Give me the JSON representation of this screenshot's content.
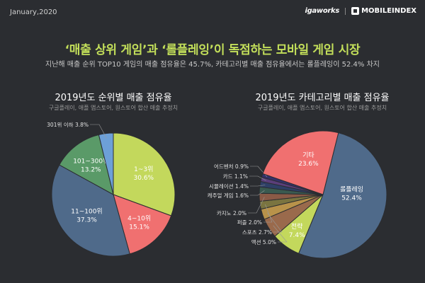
{
  "header": {
    "date": "January,2020",
    "brand_left": "igaworks",
    "brand_right": "MOBILEINDEX"
  },
  "title": "‘매출 상위 게임’과 ‘롤플레잉’이 독점하는 모바일 게임 시장",
  "subtitle": "지난해 매출 순위 TOP10 게임의 매출 점유율은 45.7%, 카테고리별 매출 점유율에서는 롤플레잉이 52.4% 차지",
  "colors": {
    "background": "#2b2d31",
    "title": "#c3df5a"
  },
  "chart_data": [
    {
      "type": "pie",
      "title": "2019년도 순위별 매출 점유율",
      "subtitle": "구글플레이, 애플 앱스토어, 원스토어 합산 매출 추정치",
      "slices": [
        {
          "label": "1~3위",
          "value": 30.6,
          "value_text": "30.6%",
          "color": "#c3d85c"
        },
        {
          "label": "4~10위",
          "value": 15.1,
          "value_text": "15.1%",
          "color": "#f07070"
        },
        {
          "label": "11~100위",
          "value": 37.3,
          "value_text": "37.3%",
          "color": "#4f6a8a"
        },
        {
          "label": "101~300위",
          "value": 13.2,
          "value_text": "13.2%",
          "color": "#5a9a68"
        },
        {
          "label": "301위 이하",
          "value": 3.8,
          "value_text": "3.8%",
          "color": "#6da0d8"
        }
      ]
    },
    {
      "type": "pie",
      "title": "2019년도 카테고리별 매출 점유율",
      "subtitle": "구글플레이, 애플 앱스토어, 원스토어 합산 매출 추정치",
      "slices": [
        {
          "label": "롤플레잉",
          "value": 52.4,
          "value_text": "52.4%",
          "color": "#4f6a8a"
        },
        {
          "label": "전략",
          "value": 7.4,
          "value_text": "7.4%",
          "color": "#c3d85c"
        },
        {
          "label": "액션",
          "value": 5.0,
          "value_text": "5.0%",
          "color": "#9a6a4c"
        },
        {
          "label": "스포츠",
          "value": 2.7,
          "value_text": "2.7%",
          "color": "#b8924a"
        },
        {
          "label": "퍼즐",
          "value": 2.0,
          "value_text": "2.0%",
          "color": "#7a7440"
        },
        {
          "label": "카지노",
          "value": 2.0,
          "value_text": "2.0%",
          "color": "#8a5a46"
        },
        {
          "label": "캐주얼 게임",
          "value": 1.6,
          "value_text": "1.6%",
          "color": "#3a5a50"
        },
        {
          "label": "시뮬레이션",
          "value": 1.4,
          "value_text": "1.4%",
          "color": "#2e3f66"
        },
        {
          "label": "카드",
          "value": 1.1,
          "value_text": "1.1%",
          "color": "#5a3e7a"
        },
        {
          "label": "어드벤처",
          "value": 0.9,
          "value_text": "0.9%",
          "color": "#34306a"
        },
        {
          "label": "기타",
          "value": 23.6,
          "value_text": "23.6%",
          "color": "#f07070"
        }
      ]
    }
  ]
}
